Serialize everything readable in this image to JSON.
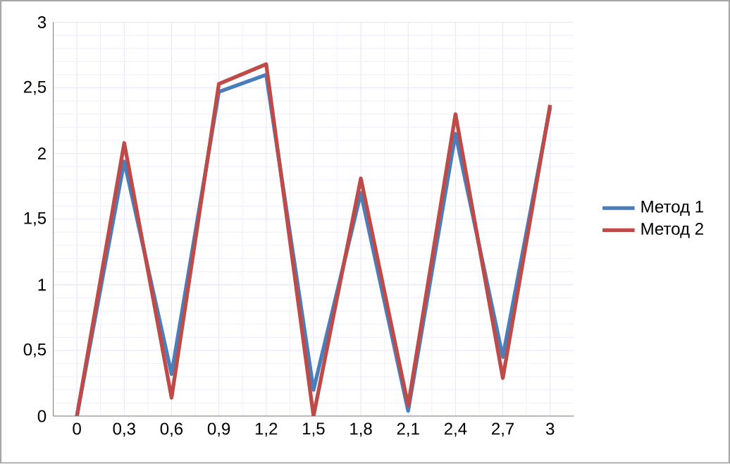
{
  "chart_data": {
    "type": "line",
    "categories": [
      "0",
      "0,3",
      "0,6",
      "0,9",
      "1,2",
      "1,5",
      "1,8",
      "2,1",
      "2,4",
      "2,7",
      "3"
    ],
    "series": [
      {
        "name": "Метод 1",
        "color": "#4a7ebb",
        "values": [
          0,
          1.94,
          0.32,
          2.47,
          2.6,
          0.2,
          1.7,
          0.04,
          2.15,
          0.45,
          2.35
        ]
      },
      {
        "name": "Метод 2",
        "color": "#be4b48",
        "values": [
          0,
          2.08,
          0.14,
          2.53,
          2.68,
          0,
          1.81,
          0.08,
          2.3,
          0.29,
          2.37
        ]
      }
    ],
    "ylim": [
      0,
      3
    ],
    "yticks": [
      0,
      {
        "value": 0.5,
        "label": "0,5"
      },
      1,
      {
        "value": 1.5,
        "label": "1,5"
      },
      2,
      {
        "value": 2.5,
        "label": "2,5"
      },
      3
    ],
    "grid": true,
    "legend": "right",
    "marker": "none",
    "line_style": "solid"
  }
}
